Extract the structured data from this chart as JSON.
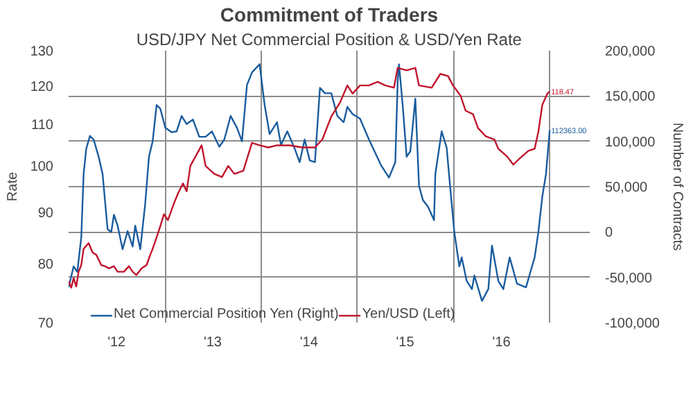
{
  "chart_data": {
    "type": "line",
    "title": "Commitment of Traders",
    "subtitle": "USD/JPY Net Commercial Position & USD/Yen Rate",
    "ylabel": "Rate",
    "y2label": "Number of Contracts",
    "xlim": [
      "2012-01-01",
      "2017-06-01"
    ],
    "xticks": [
      {
        "value": "2012-07-01",
        "label": "'12"
      },
      {
        "value": "2013-01-01",
        "label": null
      },
      {
        "value": "2013-07-01",
        "label": "'13"
      },
      {
        "value": "2014-01-01",
        "label": null
      },
      {
        "value": "2014-07-01",
        "label": "'14"
      },
      {
        "value": "2015-01-01",
        "label": null
      },
      {
        "value": "2015-07-01",
        "label": "'15"
      },
      {
        "value": "2016-01-01",
        "label": null
      },
      {
        "value": "2016-07-01",
        "label": "'16"
      },
      {
        "value": "2017-01-01",
        "label": null
      }
    ],
    "ylim": [
      70,
      130
    ],
    "yticks": [
      70,
      80,
      90,
      100,
      110,
      120,
      130
    ],
    "log": "y",
    "y2lim": [
      -100000,
      200000
    ],
    "y2ticks": [
      {
        "value": -100000,
        "label": "-100,000"
      },
      {
        "value": -50000,
        "label": "-50,000"
      },
      0,
      {
        "value": 50000,
        "label": "50,000"
      },
      {
        "value": 100000,
        "label": "100,000"
      },
      {
        "value": 150000,
        "label": "150,000"
      },
      {
        "value": 200000,
        "label": "200,000"
      }
    ],
    "grid": true,
    "legend": "bottom",
    "annotations": [
      "112363.00",
      "118.47"
    ],
    "series": [
      {
        "name": "Net Commercial Position Yen (Right)",
        "color": "#1a5c9e",
        "axis": "y2",
        "x": [
          "2012-01-01",
          "2012-01-20",
          "2012-02-03",
          "2012-02-18",
          "2012-02-27",
          "2012-03-08",
          "2012-03-22",
          "2012-04-05",
          "2012-04-24",
          "2012-05-09",
          "2012-05-28",
          "2012-06-11",
          "2012-06-21",
          "2012-07-05",
          "2012-07-24",
          "2012-08-12",
          "2012-08-31",
          "2012-09-10",
          "2012-09-29",
          "2012-10-18",
          "2012-11-01",
          "2012-11-15",
          "2012-11-30",
          "2012-12-14",
          "2013-01-02",
          "2013-01-26",
          "2013-02-14",
          "2013-03-05",
          "2013-03-24",
          "2013-04-17",
          "2013-05-11",
          "2013-06-04",
          "2013-06-28",
          "2013-07-26",
          "2013-08-14",
          "2013-09-07",
          "2013-10-01",
          "2013-10-20",
          "2013-11-08",
          "2013-11-27",
          "2013-12-26",
          "2014-01-14",
          "2014-02-02",
          "2014-03-02",
          "2014-03-17",
          "2014-04-10",
          "2014-05-08",
          "2014-05-27",
          "2014-06-15",
          "2014-07-04",
          "2014-07-24",
          "2014-08-12",
          "2014-08-31",
          "2014-09-24",
          "2014-10-17",
          "2014-11-10",
          "2014-11-24",
          "2014-12-14",
          "2015-01-11",
          "2015-02-14",
          "2015-04-02",
          "2015-05-01",
          "2015-05-25",
          "2015-06-03",
          "2015-06-08",
          "2015-06-22",
          "2015-07-07",
          "2015-07-21",
          "2015-08-09",
          "2015-08-23",
          "2015-09-07",
          "2015-09-26",
          "2015-10-19",
          "2015-10-24",
          "2015-11-17",
          "2015-12-06",
          "2015-12-20",
          "2016-01-04",
          "2016-01-23",
          "2016-02-01",
          "2016-02-20",
          "2016-03-11",
          "2016-03-20",
          "2016-04-18",
          "2016-05-12",
          "2016-05-26",
          "2016-06-19",
          "2016-07-08",
          "2016-08-01",
          "2016-08-29",
          "2016-10-02",
          "2016-11-04",
          "2016-11-18",
          "2016-12-03",
          "2016-12-17",
          "2016-12-31"
        ],
        "values": [
          -61000,
          -38000,
          -44000,
          -6000,
          64000,
          92000,
          106000,
          102000,
          83000,
          64000,
          3000,
          0,
          19000,
          7000,
          -19000,
          1000,
          -16000,
          7000,
          -19000,
          32000,
          83000,
          100000,
          140000,
          136000,
          115000,
          110000,
          111000,
          128000,
          119000,
          124000,
          105000,
          105000,
          111000,
          94000,
          102000,
          128000,
          115000,
          100000,
          162000,
          176000,
          185000,
          140000,
          108000,
          121000,
          96000,
          111000,
          92000,
          77000,
          102000,
          79000,
          77000,
          159000,
          153000,
          153000,
          128000,
          121000,
          138000,
          130000,
          125000,
          102000,
          73000,
          60000,
          77000,
          166000,
          185000,
          140000,
          83000,
          89000,
          147000,
          51000,
          35000,
          28000,
          13000,
          64000,
          111000,
          93000,
          47000,
          0,
          -38000,
          -28000,
          -54000,
          -63000,
          -48000,
          -76000,
          -63000,
          -15000,
          -54000,
          -63000,
          -28000,
          -57000,
          -61000,
          -28000,
          0,
          39000,
          64000,
          112363
        ]
      },
      {
        "name": "Yen/USD (Left)",
        "color": "#c0142c",
        "x": [
          "2012-01-01",
          "2012-01-11",
          "2012-01-20",
          "2012-01-30",
          "2012-02-08",
          "2012-02-18",
          "2012-02-27",
          "2012-03-17",
          "2012-04-01",
          "2012-04-15",
          "2012-05-04",
          "2012-05-18",
          "2012-06-02",
          "2012-06-21",
          "2012-07-05",
          "2012-07-29",
          "2012-08-17",
          "2012-08-31",
          "2012-09-14",
          "2012-10-04",
          "2012-10-23",
          "2012-11-06",
          "2012-11-15",
          "2012-11-30",
          "2012-12-14",
          "2012-12-28",
          "2013-01-12",
          "2013-02-05",
          "2013-02-19",
          "2013-03-10",
          "2013-03-24",
          "2013-04-07",
          "2013-05-20",
          "2013-06-04",
          "2013-07-07",
          "2013-08-05",
          "2013-08-29",
          "2013-09-21",
          "2013-10-25",
          "2013-11-27",
          "2013-12-26",
          "2014-01-28",
          "2014-03-02",
          "2014-04-19",
          "2014-06-06",
          "2014-07-24",
          "2014-08-21",
          "2014-09-24",
          "2014-10-27",
          "2014-11-24",
          "2014-12-14",
          "2015-01-11",
          "2015-02-14",
          "2015-03-19",
          "2015-04-17",
          "2015-05-20",
          "2015-06-03",
          "2015-07-07",
          "2015-08-09",
          "2015-08-23",
          "2015-10-10",
          "2015-11-12",
          "2015-12-11",
          "2015-12-30",
          "2016-01-28",
          "2016-02-16",
          "2016-03-15",
          "2016-04-03",
          "2016-05-02",
          "2016-06-04",
          "2016-06-19",
          "2016-07-22",
          "2016-08-15",
          "2016-09-08",
          "2016-10-11",
          "2016-11-04",
          "2016-11-18",
          "2016-12-03",
          "2016-12-22",
          "2016-12-31"
        ],
        "values": [
          76.9,
          75.8,
          77.5,
          76.0,
          78.6,
          79.8,
          82.8,
          83.9,
          82.1,
          81.7,
          79.8,
          79.6,
          79.2,
          79.6,
          78.6,
          78.6,
          79.6,
          78.6,
          78.0,
          79.2,
          79.8,
          81.7,
          82.8,
          85.0,
          87.2,
          89.6,
          88.4,
          92.0,
          93.9,
          96.1,
          94.4,
          100.0,
          104.8,
          100.0,
          98.2,
          97.5,
          100.0,
          98.2,
          98.9,
          105.4,
          104.8,
          104.3,
          104.8,
          104.8,
          104.3,
          104.3,
          106.2,
          111.9,
          115.5,
          120.1,
          117.9,
          120.1,
          120.1,
          121.1,
          120.1,
          119.5,
          125.0,
          124.3,
          125.0,
          120.1,
          119.5,
          123.3,
          122.7,
          120.1,
          117.3,
          113.4,
          112.5,
          109.0,
          107.0,
          106.2,
          104.0,
          102.2,
          100.3,
          101.7,
          103.5,
          104.0,
          108.1,
          114.9,
          117.9,
          118.47
        ]
      }
    ]
  }
}
